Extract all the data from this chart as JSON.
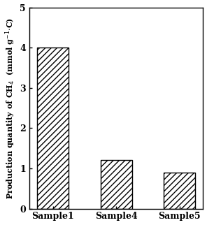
{
  "categories": [
    "Sample1",
    "Sample4",
    "Sample5"
  ],
  "values": [
    4.0,
    1.2,
    0.9
  ],
  "bar_color": "#ffffff",
  "bar_edge_color": "#000000",
  "hatch_pattern": "////",
  "ylim": [
    0,
    5
  ],
  "yticks": [
    0,
    1,
    2,
    3,
    4,
    5
  ],
  "bar_width": 0.5,
  "figsize": [
    2.96,
    3.22
  ],
  "dpi": 100,
  "tick_fontsize": 9,
  "label_fontsize": 8,
  "xlabel_fontsize": 9,
  "bar_linewidth": 1.0
}
